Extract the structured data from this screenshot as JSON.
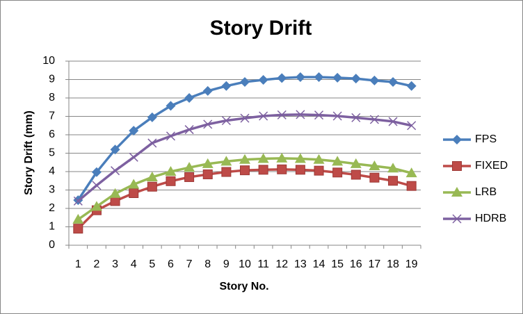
{
  "chart_data": {
    "type": "line",
    "title": "Story Drift",
    "x_label": "Story No.",
    "y_label": "Story Drift (mm)",
    "categories": [
      1,
      2,
      3,
      4,
      5,
      6,
      7,
      8,
      9,
      10,
      11,
      12,
      13,
      14,
      15,
      16,
      17,
      18,
      19
    ],
    "series": [
      {
        "name": "FPS",
        "color": "#4a7ebb",
        "marker": "diamond",
        "values": [
          2.45,
          3.97,
          5.2,
          6.22,
          6.95,
          7.57,
          8.0,
          8.38,
          8.65,
          8.87,
          8.98,
          9.08,
          9.13,
          9.13,
          9.1,
          9.05,
          8.95,
          8.87,
          8.65
        ]
      },
      {
        "name": "FIXED",
        "color": "#be4b48",
        "marker": "square",
        "values": [
          0.9,
          1.9,
          2.4,
          2.83,
          3.18,
          3.48,
          3.7,
          3.85,
          3.98,
          4.07,
          4.1,
          4.12,
          4.1,
          4.05,
          3.95,
          3.83,
          3.67,
          3.5,
          3.22
        ]
      },
      {
        "name": "LRB",
        "color": "#98b954",
        "marker": "triangle",
        "values": [
          1.4,
          2.1,
          2.8,
          3.3,
          3.7,
          4.0,
          4.22,
          4.42,
          4.55,
          4.65,
          4.7,
          4.72,
          4.7,
          4.65,
          4.55,
          4.42,
          4.3,
          4.18,
          3.92
        ]
      },
      {
        "name": "HDRB",
        "color": "#7d60a0",
        "marker": "x",
        "values": [
          2.4,
          3.25,
          4.05,
          4.78,
          5.55,
          5.93,
          6.28,
          6.57,
          6.77,
          6.9,
          7.02,
          7.08,
          7.1,
          7.07,
          7.02,
          6.93,
          6.83,
          6.72,
          6.5
        ]
      }
    ],
    "ylim": [
      0,
      10
    ],
    "yticks": [
      0,
      1,
      2,
      3,
      4,
      5,
      6,
      7,
      8,
      9,
      10
    ],
    "grid": true,
    "legend": "right"
  }
}
